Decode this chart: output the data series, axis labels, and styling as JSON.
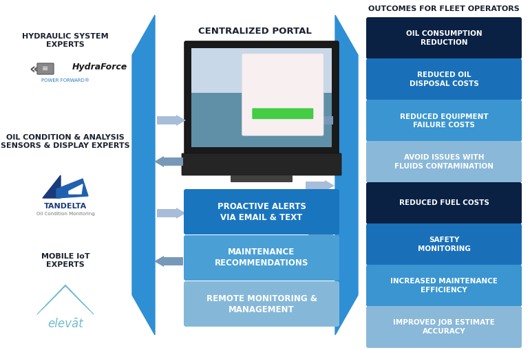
{
  "bg_color": "#ffffff",
  "title": "OUTCOMES FOR FLEET OPERATORS",
  "centralized_portal": "CENTRALIZED PORTAL",
  "funnel_blue": "#2e8fd4",
  "left_label_1": "HYDRAULIC SYSTEM\nEXPERTS",
  "left_label_2": "OIL CONDITION & ANALYSIS\nSENSORS & DISPLAY EXPERTS",
  "left_label_3": "MOBILE IoT\nEXPERTS",
  "center_boxes": [
    {
      "text": "PROACTIVE ALERTS\nVIA EMAIL & TEXT",
      "color": "#1a75bf"
    },
    {
      "text": "MAINTENANCE\nRECOMMENDATIONS",
      "color": "#4a9fd5"
    },
    {
      "text": "REMOTE MONITORING &\nMANAGEMENT",
      "color": "#85b8d8"
    }
  ],
  "right_boxes": [
    {
      "text": "OIL CONSUMPTION\nREDUCTION",
      "color": "#0a2144"
    },
    {
      "text": "REDUCED OIL\nDISPOSAL COSTS",
      "color": "#1a70b8"
    },
    {
      "text": "REDUCED EQUIPMENT\nFAILURE COSTS",
      "color": "#3a95d0"
    },
    {
      "text": "AVOID ISSUES WITH\nFLUIDS CONTAMINATION",
      "color": "#8ab8d8"
    },
    {
      "text": "REDUCED FUEL COSTS",
      "color": "#0a2144"
    },
    {
      "text": "SAFETY\nMONITORING",
      "color": "#1a70b8"
    },
    {
      "text": "INCREASED MAINTENANCE\nEFFICIENCY",
      "color": "#3a95d0"
    },
    {
      "text": "IMPROVED JOB ESTIMATE\nACCURACY",
      "color": "#8ab8d8"
    }
  ],
  "arrow_right_color": "#a8bdd8",
  "arrow_left_color": "#7898b8",
  "text_dark": "#1a2030",
  "text_white": "#ffffff",
  "hydraforce_blue": "#2878c0",
  "tandelta_dark": "#1a3a7a",
  "tandelta_mid": "#2060b0",
  "elevat_cyan": "#70bcd0"
}
